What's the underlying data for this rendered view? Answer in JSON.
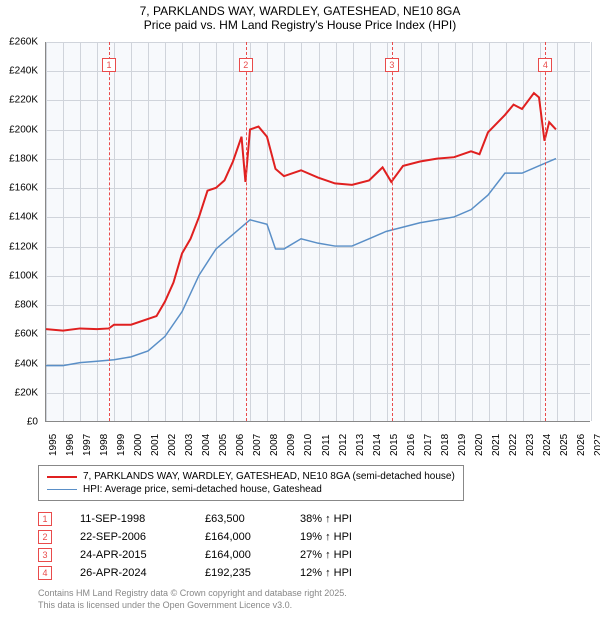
{
  "title_line1": "7, PARKLANDS WAY, WARDLEY, GATESHEAD, NE10 8GA",
  "title_line2": "Price paid vs. HM Land Registry's House Price Index (HPI)",
  "chart": {
    "type": "line",
    "background_color": "#f7f9fc",
    "grid_color": "#d0d4db",
    "axis_color": "#888888",
    "ylim": [
      0,
      260000
    ],
    "ytick_step": 20000,
    "y_labels": [
      "£0",
      "£20K",
      "£40K",
      "£60K",
      "£80K",
      "£100K",
      "£120K",
      "£140K",
      "£160K",
      "£180K",
      "£200K",
      "£220K",
      "£240K",
      "£260K"
    ],
    "xlim": [
      1995,
      2027
    ],
    "x_labels": [
      "1995",
      "1996",
      "1997",
      "1998",
      "1999",
      "2000",
      "2001",
      "2002",
      "2003",
      "2004",
      "2005",
      "2006",
      "2007",
      "2008",
      "2009",
      "2010",
      "2011",
      "2012",
      "2013",
      "2014",
      "2015",
      "2016",
      "2017",
      "2018",
      "2019",
      "2020",
      "2021",
      "2022",
      "2023",
      "2024",
      "2025",
      "2026",
      "2027"
    ],
    "series": [
      {
        "name": "price_paid",
        "color": "#e02020",
        "line_width": 2,
        "points": [
          [
            1995,
            63000
          ],
          [
            1996,
            62000
          ],
          [
            1997,
            63500
          ],
          [
            1998,
            63000
          ],
          [
            1998.7,
            63500
          ],
          [
            1999,
            66000
          ],
          [
            2000,
            66000
          ],
          [
            2001,
            70000
          ],
          [
            2001.5,
            72000
          ],
          [
            2002,
            82000
          ],
          [
            2002.5,
            95000
          ],
          [
            2003,
            115000
          ],
          [
            2003.5,
            125000
          ],
          [
            2004,
            140000
          ],
          [
            2004.5,
            158000
          ],
          [
            2005,
            160000
          ],
          [
            2005.5,
            165000
          ],
          [
            2006,
            178000
          ],
          [
            2006.5,
            195000
          ],
          [
            2006.73,
            164000
          ],
          [
            2007,
            200000
          ],
          [
            2007.5,
            202000
          ],
          [
            2008,
            195000
          ],
          [
            2008.5,
            173000
          ],
          [
            2009,
            168000
          ],
          [
            2010,
            172000
          ],
          [
            2011,
            167000
          ],
          [
            2012,
            163000
          ],
          [
            2013,
            162000
          ],
          [
            2014,
            165000
          ],
          [
            2014.8,
            174000
          ],
          [
            2015.31,
            164000
          ],
          [
            2016,
            175000
          ],
          [
            2017,
            178000
          ],
          [
            2018,
            180000
          ],
          [
            2019,
            181000
          ],
          [
            2020,
            185000
          ],
          [
            2020.5,
            183000
          ],
          [
            2021,
            198000
          ],
          [
            2022,
            210000
          ],
          [
            2022.5,
            217000
          ],
          [
            2023,
            214000
          ],
          [
            2023.7,
            225000
          ],
          [
            2024,
            222000
          ],
          [
            2024.32,
            192235
          ],
          [
            2024.6,
            205000
          ],
          [
            2025,
            200000
          ]
        ]
      },
      {
        "name": "hpi",
        "color": "#5a8fc7",
        "line_width": 1.5,
        "points": [
          [
            1995,
            38000
          ],
          [
            1996,
            38000
          ],
          [
            1997,
            40000
          ],
          [
            1998,
            41000
          ],
          [
            1999,
            42000
          ],
          [
            2000,
            44000
          ],
          [
            2001,
            48000
          ],
          [
            2002,
            58000
          ],
          [
            2003,
            75000
          ],
          [
            2004,
            100000
          ],
          [
            2005,
            118000
          ],
          [
            2006,
            128000
          ],
          [
            2007,
            138000
          ],
          [
            2008,
            135000
          ],
          [
            2008.5,
            118000
          ],
          [
            2009,
            118000
          ],
          [
            2010,
            125000
          ],
          [
            2011,
            122000
          ],
          [
            2012,
            120000
          ],
          [
            2013,
            120000
          ],
          [
            2014,
            125000
          ],
          [
            2015,
            130000
          ],
          [
            2016,
            133000
          ],
          [
            2017,
            136000
          ],
          [
            2018,
            138000
          ],
          [
            2019,
            140000
          ],
          [
            2020,
            145000
          ],
          [
            2021,
            155000
          ],
          [
            2022,
            170000
          ],
          [
            2023,
            170000
          ],
          [
            2024,
            175000
          ],
          [
            2025,
            180000
          ]
        ]
      }
    ],
    "markers": [
      {
        "num": "1",
        "x": 1998.7
      },
      {
        "num": "2",
        "x": 2006.73
      },
      {
        "num": "3",
        "x": 2015.31
      },
      {
        "num": "4",
        "x": 2024.32
      }
    ],
    "marker_color": "#e94b4b"
  },
  "legend": {
    "border_color": "#888888",
    "items": [
      {
        "color": "#e02020",
        "width": 2,
        "label": "7, PARKLANDS WAY, WARDLEY, GATESHEAD, NE10 8GA (semi-detached house)"
      },
      {
        "color": "#5a8fc7",
        "width": 1.5,
        "label": "HPI: Average price, semi-detached house, Gateshead"
      }
    ]
  },
  "sales": [
    {
      "num": "1",
      "date": "11-SEP-1998",
      "price": "£63,500",
      "pct": "38% ↑ HPI"
    },
    {
      "num": "2",
      "date": "22-SEP-2006",
      "price": "£164,000",
      "pct": "19% ↑ HPI"
    },
    {
      "num": "3",
      "date": "24-APR-2015",
      "price": "£164,000",
      "pct": "27% ↑ HPI"
    },
    {
      "num": "4",
      "date": "26-APR-2024",
      "price": "£192,235",
      "pct": "12% ↑ HPI"
    }
  ],
  "footer_line1": "Contains HM Land Registry data © Crown copyright and database right 2025.",
  "footer_line2": "This data is licensed under the Open Government Licence v3.0."
}
